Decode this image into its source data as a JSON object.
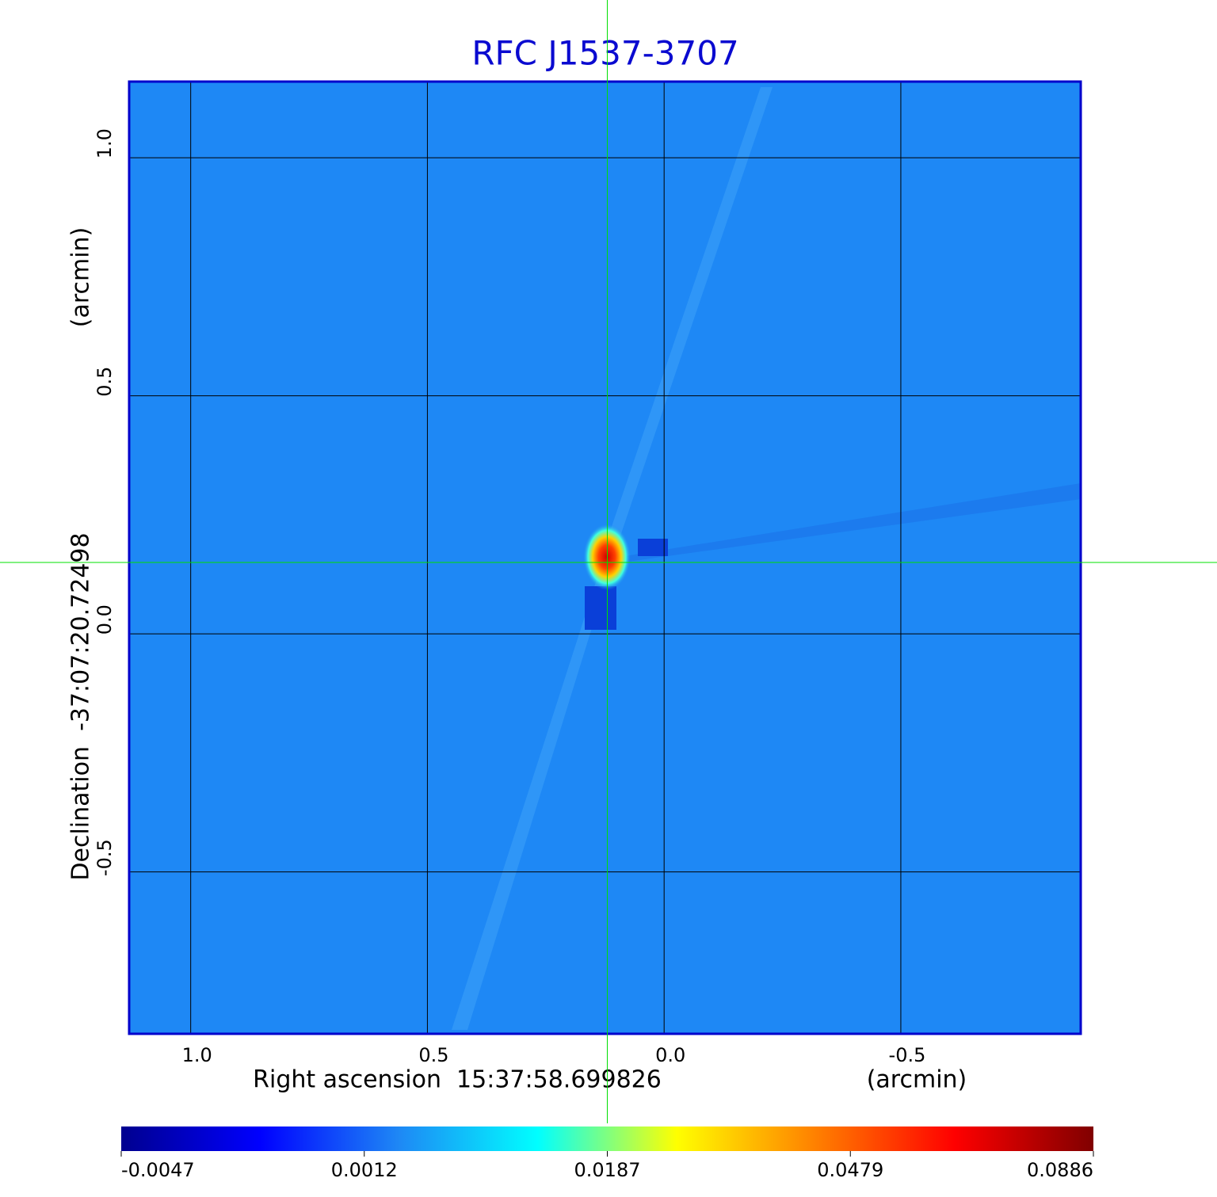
{
  "chart_data": {
    "type": "image",
    "title": "RFC J1537-3707",
    "xlabel": "Right ascension  15:37:58.699826",
    "xunit": "(arcmin)",
    "ylabel": "Declination  -37:07:20.72498",
    "yunit": "(arcmin)",
    "xlim": [
      1.13,
      -0.88
    ],
    "ylim": [
      -0.84,
      1.16
    ],
    "xticks": [
      {
        "value": 1,
        "label": "1.0"
      },
      {
        "value": 0.5,
        "label": "0.5"
      },
      {
        "value": 0,
        "label": "0.0"
      },
      {
        "value": -0.5,
        "label": "-0.5"
      }
    ],
    "yticks": [
      {
        "value": 1,
        "label": "1.0"
      },
      {
        "value": 0.5,
        "label": "0.5"
      },
      {
        "value": 0,
        "label": "0.0"
      },
      {
        "value": -0.5,
        "label": "-0.5"
      }
    ],
    "grid": true,
    "crosshair": {
      "x": 0.12,
      "y": 0.15,
      "color": "#00e000"
    },
    "colorbar": {
      "ticks": [
        -0.0047,
        0.0012,
        0.0187,
        0.0479,
        0.0886
      ],
      "colormap": [
        "#00008f",
        "#0000ff",
        "#1e88f5",
        "#00ffff",
        "#ffff00",
        "#ff8000",
        "#ff0000",
        "#800000"
      ]
    }
  }
}
